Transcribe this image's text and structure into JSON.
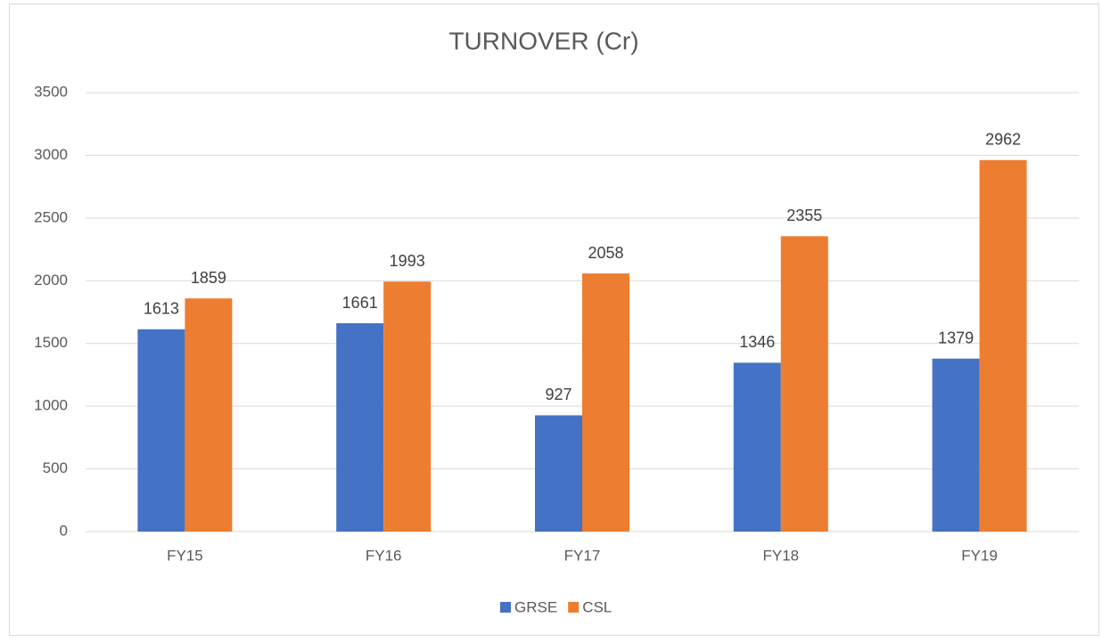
{
  "chart_data": {
    "type": "bar",
    "title": "TURNOVER (Cr)",
    "categories": [
      "FY15",
      "FY16",
      "FY17",
      "FY18",
      "FY19"
    ],
    "series": [
      {
        "name": "GRSE",
        "color": "#4472c4",
        "values": [
          1613,
          1661,
          927,
          1346,
          1379
        ]
      },
      {
        "name": "CSL",
        "color": "#ed7d31",
        "values": [
          1859,
          1993,
          2058,
          2355,
          2962
        ]
      }
    ],
    "ylim": [
      0,
      3500
    ],
    "yticks": [
      0,
      500,
      1000,
      1500,
      2000,
      2500,
      3000,
      3500
    ],
    "grid": true,
    "legend": "bottom"
  }
}
